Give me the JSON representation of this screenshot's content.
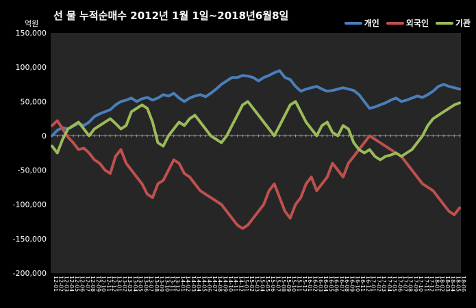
{
  "chart_data": {
    "type": "line",
    "title": "선 물 누적순매수 2012년 1월 1일~2018년6월8일",
    "ylabel": "억원",
    "xlabel": "",
    "ylim": [
      -200000,
      150000
    ],
    "yticks": [
      150000,
      100000,
      50000,
      0,
      -50000,
      -100000,
      -150000,
      -200000
    ],
    "ytick_labels": [
      "150,000",
      "100,000",
      "50,000",
      "0",
      "-50,000",
      "-100,000",
      "-150,000",
      "-200,000"
    ],
    "x": [
      "12-01",
      "12-02",
      "12-03",
      "12-04",
      "12-05",
      "12-06",
      "12-07",
      "12-08",
      "12-09",
      "12-10",
      "12-11",
      "12-12",
      "13-01",
      "13-02",
      "13-03",
      "13-04",
      "13-05",
      "13-06",
      "13-07",
      "13-08",
      "13-09",
      "13-10",
      "13-11",
      "13-12",
      "14-01",
      "14-02",
      "14-03",
      "14-04",
      "14-05",
      "14-06",
      "14-07",
      "14-08",
      "14-09",
      "14-10",
      "14-11",
      "14-12",
      "15-01",
      "15-02",
      "15-03",
      "15-04",
      "15-05",
      "15-06",
      "15-07",
      "15-08",
      "15-09",
      "15-10",
      "15-11",
      "15-12",
      "16-01",
      "16-02",
      "16-03",
      "16-04",
      "16-05",
      "16-06",
      "16-07",
      "16-08",
      "16-09",
      "16-10",
      "16-11",
      "16-12",
      "17-01",
      "17-02",
      "17-03",
      "17-04",
      "17-05",
      "17-06",
      "17-07",
      "17-08",
      "17-09",
      "17-10",
      "17-11",
      "17-12",
      "18-01",
      "18-02",
      "18-03",
      "18-04",
      "18-05",
      "18-06"
    ],
    "legend_position": "top-right",
    "grid": false,
    "series": [
      {
        "name": "개인",
        "color": "#4a7ebb",
        "values": [
          0,
          8000,
          12000,
          10000,
          14000,
          18000,
          15000,
          20000,
          28000,
          32000,
          35000,
          38000,
          45000,
          50000,
          52000,
          55000,
          50000,
          54000,
          56000,
          52000,
          55000,
          60000,
          58000,
          62000,
          55000,
          50000,
          55000,
          58000,
          60000,
          57000,
          62000,
          68000,
          75000,
          80000,
          85000,
          85000,
          88000,
          87000,
          85000,
          80000,
          85000,
          88000,
          92000,
          95000,
          85000,
          82000,
          72000,
          65000,
          68000,
          70000,
          72000,
          68000,
          65000,
          66000,
          68000,
          70000,
          68000,
          66000,
          60000,
          50000,
          40000,
          42000,
          45000,
          48000,
          52000,
          55000,
          50000,
          52000,
          55000,
          58000,
          56000,
          60000,
          65000,
          72000,
          75000,
          72000,
          70000,
          68000
        ]
      },
      {
        "name": "외국인",
        "color": "#c0504d",
        "values": [
          15000,
          22000,
          10000,
          -2000,
          -10000,
          -20000,
          -18000,
          -25000,
          -35000,
          -40000,
          -50000,
          -55000,
          -30000,
          -20000,
          -40000,
          -50000,
          -60000,
          -70000,
          -85000,
          -90000,
          -70000,
          -65000,
          -50000,
          -35000,
          -40000,
          -55000,
          -60000,
          -70000,
          -80000,
          -85000,
          -90000,
          -95000,
          -100000,
          -110000,
          -120000,
          -130000,
          -135000,
          -130000,
          -120000,
          -110000,
          -100000,
          -80000,
          -70000,
          -90000,
          -110000,
          -120000,
          -100000,
          -90000,
          -70000,
          -60000,
          -80000,
          -70000,
          -60000,
          -40000,
          -50000,
          -60000,
          -40000,
          -30000,
          -20000,
          -10000,
          0,
          -5000,
          -10000,
          -15000,
          -20000,
          -25000,
          -30000,
          -40000,
          -50000,
          -60000,
          -70000,
          -75000,
          -80000,
          -90000,
          -100000,
          -110000,
          -115000,
          -105000
        ]
      },
      {
        "name": "기관",
        "color": "#9bbb59",
        "values": [
          -15000,
          -25000,
          -5000,
          10000,
          15000,
          20000,
          10000,
          0,
          10000,
          15000,
          20000,
          25000,
          18000,
          10000,
          15000,
          35000,
          40000,
          45000,
          40000,
          20000,
          -10000,
          -15000,
          0,
          10000,
          20000,
          15000,
          25000,
          30000,
          20000,
          10000,
          0,
          -5000,
          -10000,
          0,
          15000,
          30000,
          45000,
          50000,
          40000,
          30000,
          20000,
          10000,
          0,
          15000,
          30000,
          45000,
          50000,
          35000,
          20000,
          10000,
          0,
          15000,
          20000,
          5000,
          0,
          15000,
          10000,
          -10000,
          -20000,
          -25000,
          -20000,
          -30000,
          -35000,
          -30000,
          -28000,
          -25000,
          -30000,
          -25000,
          -20000,
          -10000,
          0,
          15000,
          25000,
          30000,
          35000,
          40000,
          45000,
          48000
        ]
      }
    ]
  }
}
